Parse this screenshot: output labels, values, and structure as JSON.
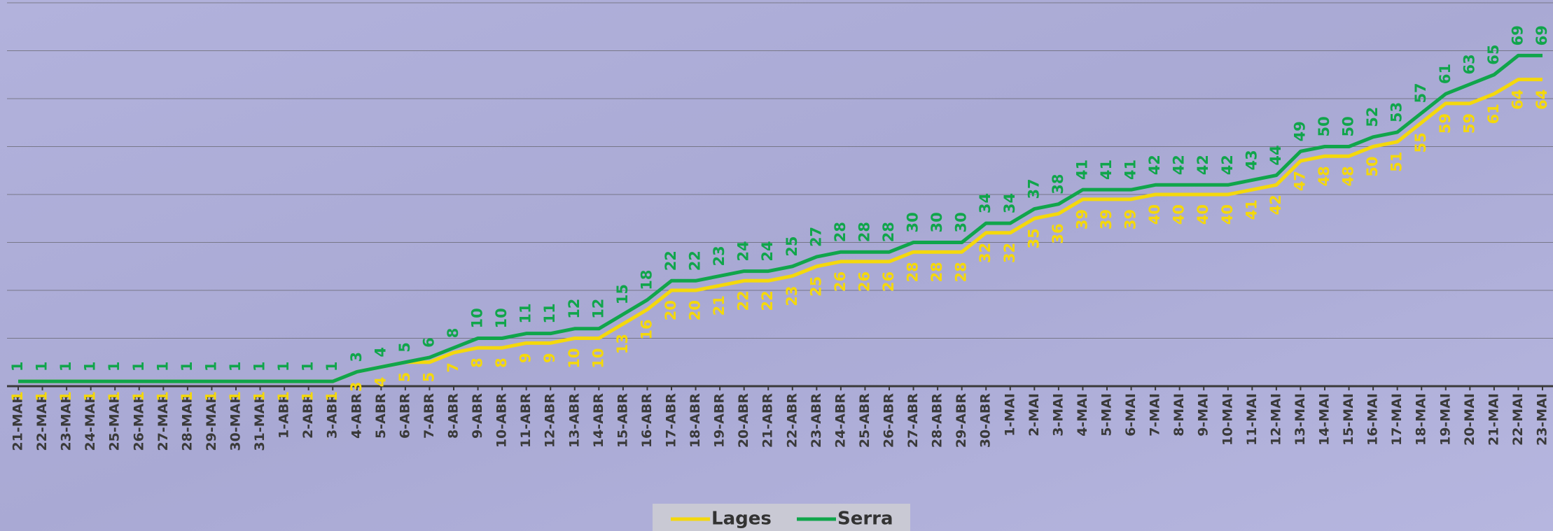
{
  "chart_data": {
    "type": "line",
    "categories": [
      "21-MAR",
      "22-MAR",
      "23-MAR",
      "24-MAR",
      "25-MAR",
      "26-MAR",
      "27-MAR",
      "28-MAR",
      "29-MAR",
      "30-MAR",
      "31-MAR",
      "1-ABR",
      "2-ABR",
      "3-ABR",
      "4-ABR",
      "5-ABR",
      "6-ABR",
      "7-ABR",
      "8-ABR",
      "9-ABR",
      "10-ABR",
      "11-ABR",
      "12-ABR",
      "13-ABR",
      "14-ABR",
      "15-ABR",
      "16-ABR",
      "17-ABR",
      "18-ABR",
      "19-ABR",
      "20-ABR",
      "21-ABR",
      "22-ABR",
      "23-ABR",
      "24-ABR",
      "25-ABR",
      "26-ABR",
      "27-ABR",
      "28-ABR",
      "29-ABR",
      "30-ABR",
      "1-MAI",
      "2-MAI",
      "3-MAI",
      "4-MAI",
      "5-MAI",
      "6-MAI",
      "7-MAI",
      "8-MAI",
      "9-MAI",
      "10-MAI",
      "11-MAI",
      "12-MAI",
      "13-MAI",
      "14-MAI",
      "15-MAI",
      "16-MAI",
      "17-MAI",
      "18-MAI",
      "19-MAI",
      "20-MAI",
      "21-MAI",
      "22-MAI",
      "23-MAI"
    ],
    "series": [
      {
        "name": "Lages",
        "color": "#f4d80c",
        "values": [
          1,
          1,
          1,
          1,
          1,
          1,
          1,
          1,
          1,
          1,
          1,
          1,
          1,
          1,
          3,
          4,
          5,
          5,
          7,
          8,
          8,
          9,
          9,
          10,
          10,
          13,
          16,
          20,
          20,
          21,
          22,
          22,
          23,
          25,
          26,
          26,
          26,
          28,
          28,
          28,
          32,
          32,
          35,
          36,
          39,
          39,
          39,
          40,
          40,
          40,
          40,
          41,
          42,
          47,
          48,
          48,
          50,
          51,
          55,
          59,
          59,
          61,
          64,
          64
        ]
      },
      {
        "name": "Serra",
        "color": "#10a54b",
        "values": [
          1,
          1,
          1,
          1,
          1,
          1,
          1,
          1,
          1,
          1,
          1,
          1,
          1,
          1,
          3,
          4,
          5,
          6,
          8,
          10,
          10,
          11,
          11,
          12,
          12,
          15,
          18,
          22,
          22,
          23,
          24,
          24,
          25,
          27,
          28,
          28,
          28,
          30,
          30,
          30,
          34,
          34,
          37,
          38,
          41,
          41,
          41,
          42,
          42,
          42,
          42,
          43,
          44,
          49,
          50,
          50,
          52,
          53,
          57,
          61,
          63,
          65,
          69,
          69
        ]
      }
    ],
    "ylim": [
      0,
      80
    ],
    "yticks": [
      0,
      10,
      20,
      30,
      40,
      50,
      60,
      70,
      80
    ],
    "grid": true
  }
}
